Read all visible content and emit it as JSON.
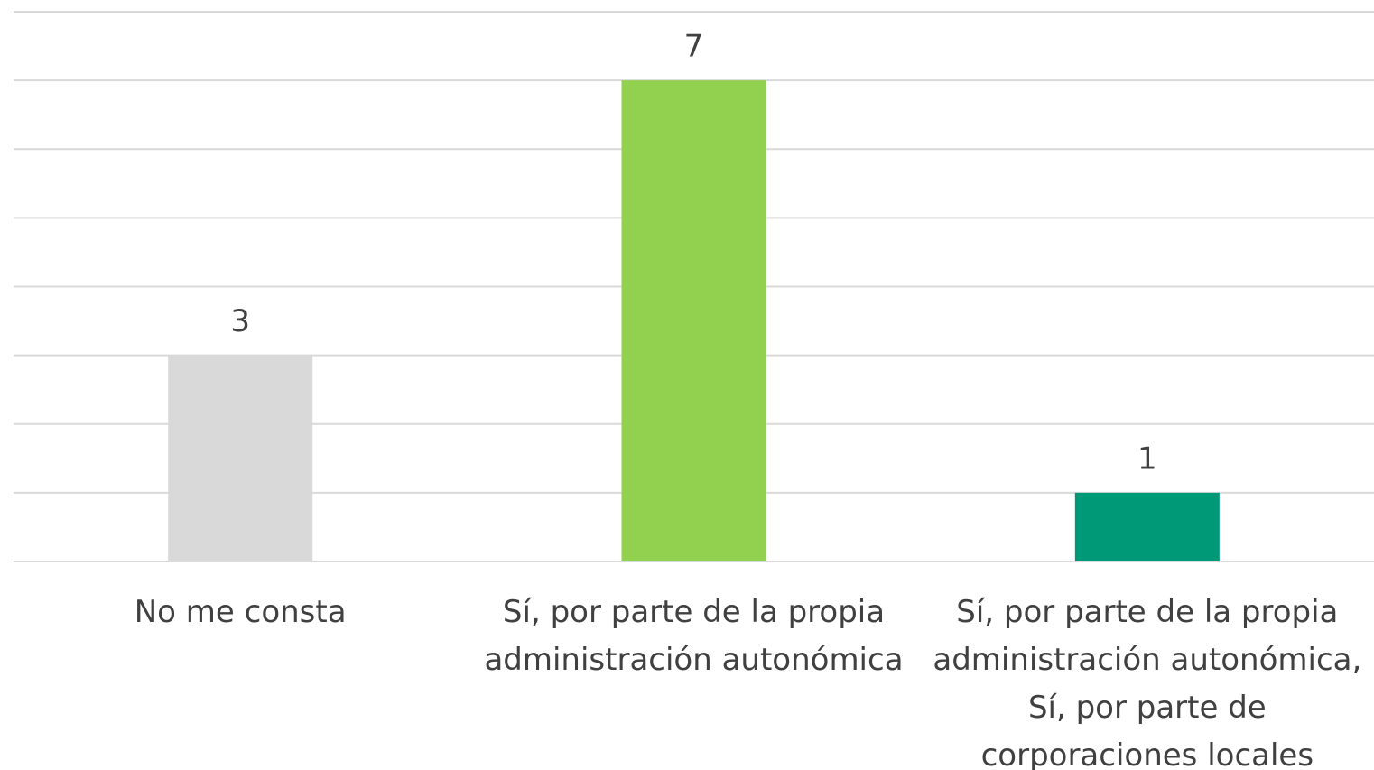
{
  "chart_data": {
    "type": "bar",
    "categories": [
      "No me consta",
      "Sí, por parte de la propia administración autonómica",
      "Sí, por parte de la propia administración autonómica, Sí, por parte de corporaciones locales"
    ],
    "values": [
      3,
      7,
      1
    ],
    "colors": [
      "#d9d9d9",
      "#92d050",
      "#009977"
    ],
    "ylim": [
      0,
      8
    ],
    "yticks": [
      0,
      1,
      2,
      3,
      4,
      5,
      6,
      7,
      8
    ],
    "grid": true
  }
}
